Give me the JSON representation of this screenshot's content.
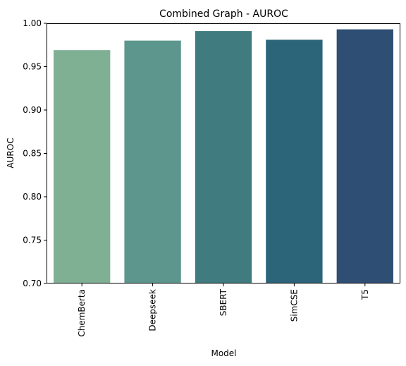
{
  "chart_data": {
    "type": "bar",
    "title": "Combined Graph - AUROC",
    "xlabel": "Model",
    "ylabel": "AUROC",
    "categories": [
      "ChemBerta",
      "Deepseek",
      "SBERT",
      "SimCSE",
      "T5"
    ],
    "values": [
      0.969,
      0.98,
      0.991,
      0.981,
      0.993
    ],
    "colors": [
      "#7fb094",
      "#5c968c",
      "#3f7b7f",
      "#2c6479",
      "#2e4e74"
    ],
    "ylim": [
      0.7,
      1.0
    ],
    "yticks": [
      "0.70",
      "0.75",
      "0.80",
      "0.85",
      "0.90",
      "0.95",
      "1.00"
    ],
    "grid": false,
    "legend": "none"
  }
}
